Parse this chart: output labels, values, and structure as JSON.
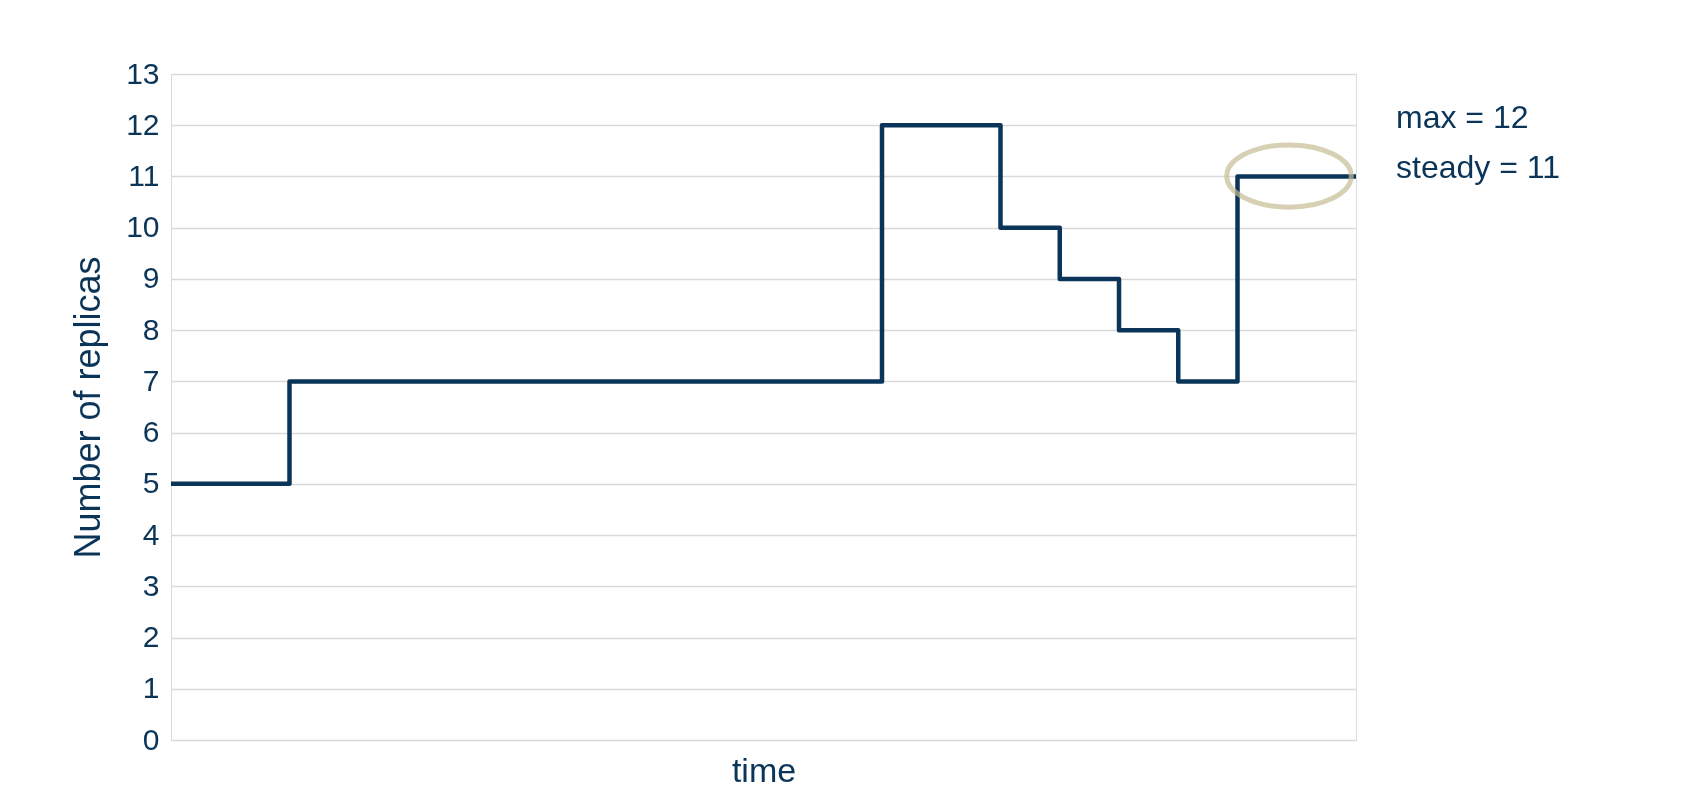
{
  "chart_data": {
    "type": "step",
    "xlabel": "time",
    "ylabel": "Number of replicas",
    "categories": [
      null,
      null,
      null,
      null,
      null,
      null,
      null,
      null,
      null,
      null,
      null,
      null,
      null,
      null,
      null,
      null,
      null,
      null,
      null,
      null,
      null
    ],
    "values": [
      5,
      5,
      7,
      7,
      7,
      7,
      7,
      7,
      7,
      7,
      7,
      7,
      12,
      12,
      10,
      9,
      8,
      7,
      11,
      11,
      11
    ],
    "color": "#0b3558",
    "ylim": [
      0,
      13
    ],
    "yticks": [
      0,
      1,
      2,
      3,
      4,
      5,
      6,
      7,
      8,
      9,
      10,
      11,
      12,
      13
    ],
    "grid": "y",
    "tick_labels": "y",
    "annotations": [
      "max = 12",
      "steady = 11"
    ]
  }
}
